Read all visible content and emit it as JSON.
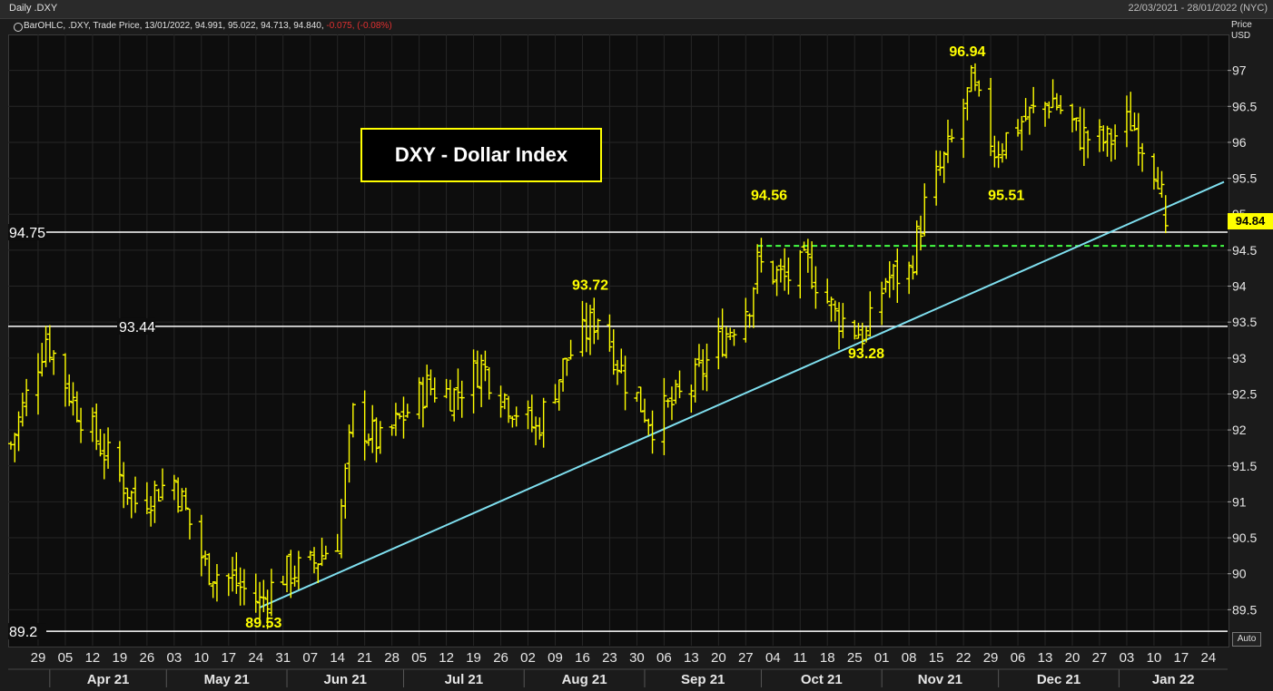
{
  "window": {
    "title": "Daily .DXY",
    "date_range": "22/03/2021 - 28/01/2022 (NYC)"
  },
  "legend": {
    "text": "BarOHLC, .DXY, Trade Price, 13/01/2022, 94.991, 95.022, 94.713, 94.840,",
    "change": "-0.075, (-0.08%)"
  },
  "price_axis": {
    "line1": "Price",
    "line2": "USD",
    "last_value": "94.84"
  },
  "buttons": {
    "auto": "Auto"
  },
  "chart_title_box": "DXY - Dollar Index",
  "colors": {
    "bars": "#ffff00",
    "trendline": "#7fdfef",
    "dashed_line": "#44ff44",
    "horizontal_lines": "#ffffff",
    "background": "#0d0d0d",
    "change_negative": "#e03030"
  },
  "chart_data": {
    "type": "ohlc",
    "y_range": [
      89,
      97.5
    ],
    "y_ticks": [
      "89.5",
      "90",
      "90.5",
      "91",
      "91.5",
      "92",
      "92.5",
      "93",
      "93.5",
      "94",
      "94.5",
      "95",
      "95.5",
      "96",
      "96.5",
      "97"
    ],
    "x_day_labels": [
      "29",
      "05",
      "12",
      "19",
      "26",
      "03",
      "10",
      "17",
      "24",
      "31",
      "07",
      "14",
      "21",
      "28",
      "05",
      "12",
      "19",
      "26",
      "02",
      "09",
      "16",
      "23",
      "30",
      "06",
      "13",
      "20",
      "27",
      "04",
      "11",
      "18",
      "25",
      "01",
      "08",
      "15",
      "22",
      "29",
      "06",
      "13",
      "20",
      "27",
      "03",
      "10",
      "17",
      "24"
    ],
    "x_month_labels": [
      "Apr 21",
      "May 21",
      "Jun 21",
      "Jul 21",
      "Aug 21",
      "Sep 21",
      "Oct 21",
      "Nov 21",
      "Dec 21",
      "Jan 22"
    ],
    "close_path": [
      {
        "d": "2021-03-22",
        "c": 91.8
      },
      {
        "d": "2021-03-31",
        "c": 93.3
      },
      {
        "d": "2021-04-07",
        "c": 92.4
      },
      {
        "d": "2021-04-15",
        "c": 91.7
      },
      {
        "d": "2021-04-23",
        "c": 91.0
      },
      {
        "d": "2021-05-03",
        "c": 91.3
      },
      {
        "d": "2021-05-11",
        "c": 90.1
      },
      {
        "d": "2021-05-18",
        "c": 89.9
      },
      {
        "d": "2021-05-25",
        "c": 89.6
      },
      {
        "d": "2021-05-31",
        "c": 90.0
      },
      {
        "d": "2021-06-07",
        "c": 90.1
      },
      {
        "d": "2021-06-14",
        "c": 90.5
      },
      {
        "d": "2021-06-18",
        "c": 92.2
      },
      {
        "d": "2021-06-25",
        "c": 91.8
      },
      {
        "d": "2021-07-07",
        "c": 92.6
      },
      {
        "d": "2021-07-14",
        "c": 92.5
      },
      {
        "d": "2021-07-21",
        "c": 92.9
      },
      {
        "d": "2021-07-28",
        "c": 92.4
      },
      {
        "d": "2021-08-04",
        "c": 92.0
      },
      {
        "d": "2021-08-12",
        "c": 93.0
      },
      {
        "d": "2021-08-20",
        "c": 93.6
      },
      {
        "d": "2021-08-27",
        "c": 92.7
      },
      {
        "d": "2021-09-03",
        "c": 92.1
      },
      {
        "d": "2021-09-13",
        "c": 92.6
      },
      {
        "d": "2021-09-20",
        "c": 93.2
      },
      {
        "d": "2021-09-28",
        "c": 93.8
      },
      {
        "d": "2021-09-30",
        "c": 94.3
      },
      {
        "d": "2021-10-07",
        "c": 94.1
      },
      {
        "d": "2021-10-13",
        "c": 94.3
      },
      {
        "d": "2021-10-20",
        "c": 93.6
      },
      {
        "d": "2021-10-28",
        "c": 93.3
      },
      {
        "d": "2021-11-02",
        "c": 94.1
      },
      {
        "d": "2021-11-08",
        "c": 94.2
      },
      {
        "d": "2021-11-12",
        "c": 95.1
      },
      {
        "d": "2021-11-19",
        "c": 96.0
      },
      {
        "d": "2021-11-24",
        "c": 96.8
      },
      {
        "d": "2021-11-30",
        "c": 95.9
      },
      {
        "d": "2021-12-07",
        "c": 96.3
      },
      {
        "d": "2021-12-15",
        "c": 96.6
      },
      {
        "d": "2021-12-22",
        "c": 96.1
      },
      {
        "d": "2021-12-29",
        "c": 96.0
      },
      {
        "d": "2022-01-04",
        "c": 96.3
      },
      {
        "d": "2022-01-07",
        "c": 96.0
      },
      {
        "d": "2022-01-11",
        "c": 95.6
      },
      {
        "d": "2022-01-13",
        "c": 94.84
      }
    ],
    "horizontal_levels": [
      {
        "value": 94.75,
        "label": "94.75"
      },
      {
        "value": 93.44,
        "label": "93.44"
      },
      {
        "value": 89.2,
        "label": "89.2"
      }
    ],
    "dashed_level": {
      "value": 94.56,
      "from": "2021-09-30",
      "to": "2022-01-28"
    },
    "trendline": {
      "from": {
        "d": "2021-05-25",
        "v": 89.53
      },
      "to": {
        "d": "2022-01-28",
        "v": 95.45
      }
    },
    "annotations": [
      {
        "text": "89.53",
        "d": "2021-05-26",
        "v": 89.25
      },
      {
        "text": "93.72",
        "d": "2021-08-18",
        "v": 93.95
      },
      {
        "text": "94.56",
        "d": "2021-10-03",
        "v": 95.2
      },
      {
        "text": "93.28",
        "d": "2021-10-28",
        "v": 93.0
      },
      {
        "text": "96.94",
        "d": "2021-11-23",
        "v": 97.2
      },
      {
        "text": "95.51",
        "d": "2021-12-03",
        "v": 95.2
      }
    ]
  }
}
